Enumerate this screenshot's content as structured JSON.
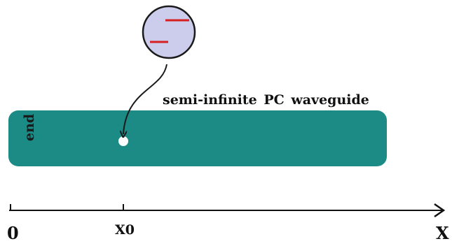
{
  "labels": {
    "waveguide": "semi-infinite  PC waveguide",
    "end": "end",
    "origin": "0",
    "x0": "X0",
    "x_axis": "X"
  },
  "colors": {
    "waveguide": "#1d8b85",
    "inset_fill": "#ccccec",
    "inset_dashes": "#d62020",
    "arrow": "#1a1a1a",
    "dot": "#ffffff",
    "axis": "#111111"
  }
}
